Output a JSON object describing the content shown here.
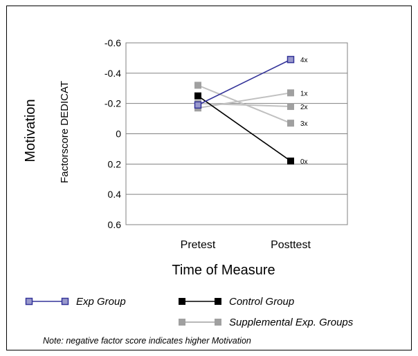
{
  "chart_data": {
    "type": "line",
    "title": "",
    "ylabel_outer": "Motivation",
    "ylabel_inner": "Factorscore DEDICAT",
    "xlabel": "Time of Measure",
    "categories": [
      "Pretest",
      "Posttest"
    ],
    "ylim": [
      0.6,
      -0.6
    ],
    "y_inverted": true,
    "yticks": [
      -0.6,
      -0.4,
      -0.2,
      0,
      0.2,
      0.4,
      0.6
    ],
    "ytick_labels": [
      "-0.6",
      "-0.4",
      "-0.2",
      "0",
      "0.2",
      "0.4",
      "0.6"
    ],
    "grid": true,
    "series": [
      {
        "name": "Supplemental Exp. Groups",
        "label": "1x",
        "values": [
          -0.17,
          -0.27
        ],
        "color": "#c0c0c0",
        "marker": "square-filled",
        "marker_color": "#a0a0a0"
      },
      {
        "name": "Supplemental Exp. Groups",
        "label": "2x",
        "values": [
          -0.2,
          -0.18
        ],
        "color": "#c0c0c0",
        "marker": "square-filled",
        "marker_color": "#a0a0a0"
      },
      {
        "name": "Supplemental Exp. Groups",
        "label": "3x",
        "values": [
          -0.32,
          -0.07
        ],
        "color": "#c0c0c0",
        "marker": "square-filled",
        "marker_color": "#a0a0a0"
      },
      {
        "name": "Control Group",
        "label": "0x",
        "values": [
          -0.25,
          0.18
        ],
        "color": "#000000",
        "marker": "square-filled",
        "marker_color": "#000000"
      },
      {
        "name": "Exp Group",
        "label": "4x",
        "values": [
          -0.19,
          -0.49
        ],
        "color": "#333399",
        "marker": "square-open",
        "marker_color": "#333399"
      }
    ],
    "legend": {
      "placement": "bottom",
      "entries": [
        {
          "label": "Exp Group",
          "color": "#333399",
          "marker": "square-open"
        },
        {
          "label": "Control Group",
          "color": "#000000",
          "marker": "square-filled"
        },
        {
          "label": "Supplemental Exp. Groups",
          "color": "#a0a0a0",
          "marker": "square-filled"
        }
      ]
    },
    "note": "Note: negative factor score indicates higher Motivation",
    "plot_background": "#c0c0c0"
  }
}
